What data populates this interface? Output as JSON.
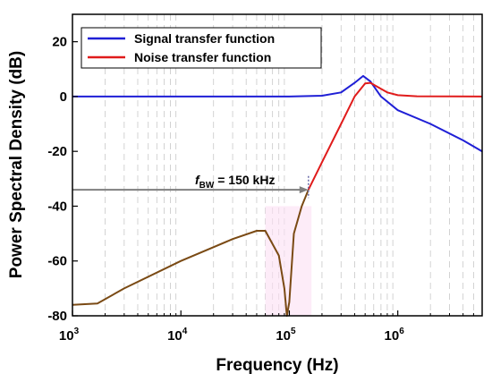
{
  "chart_data": {
    "type": "line",
    "xlabel": "Frequency (Hz)",
    "ylabel": "Power Spectral Density (dB)",
    "x_scale": "log",
    "xlim": [
      1000,
      6000000
    ],
    "ylim": [
      -80,
      30
    ],
    "x_ticks": [
      {
        "base": "10",
        "exp": "3"
      },
      {
        "base": "10",
        "exp": "4"
      },
      {
        "base": "10",
        "exp": "5"
      },
      {
        "base": "10",
        "exp": "6"
      }
    ],
    "y_ticks": [
      "20",
      "0",
      "-20",
      "-40",
      "-60",
      "-80"
    ],
    "grid": "dashed minor vertical",
    "legend_position": "top-left",
    "series": [
      {
        "name": "Signal transfer function",
        "color": "#1f1fd6",
        "points": [
          [
            1000,
            0
          ],
          [
            100000,
            0
          ],
          [
            200000,
            0.3
          ],
          [
            300000,
            1.5
          ],
          [
            400000,
            5
          ],
          [
            480000,
            7.5
          ],
          [
            560000,
            5.5
          ],
          [
            700000,
            0
          ],
          [
            1000000,
            -5
          ],
          [
            2000000,
            -10
          ],
          [
            4000000,
            -16
          ],
          [
            6000000,
            -20
          ]
        ]
      },
      {
        "name": "Noise transfer function",
        "color": "#e01b1b",
        "points": [
          [
            150000,
            -34
          ],
          [
            200000,
            -24
          ],
          [
            300000,
            -10
          ],
          [
            400000,
            0
          ],
          [
            500000,
            4.8
          ],
          [
            560000,
            5
          ],
          [
            800000,
            1.5
          ],
          [
            1000000,
            0.5
          ],
          [
            1500000,
            0.1
          ],
          [
            6000000,
            0
          ]
        ]
      },
      {
        "name": "",
        "color": "#7a4a14",
        "points": [
          [
            1000,
            -76
          ],
          [
            1700,
            -75.5
          ],
          [
            3000,
            -70
          ],
          [
            10000,
            -60
          ],
          [
            30000,
            -52
          ],
          [
            50000,
            -49
          ],
          [
            60000,
            -49
          ],
          [
            80000,
            -58
          ],
          [
            90000,
            -70
          ],
          [
            95000,
            -80
          ],
          [
            100000,
            -75
          ],
          [
            110000,
            -50
          ],
          [
            130000,
            -40
          ],
          [
            150000,
            -34
          ]
        ]
      }
    ],
    "annotation": {
      "label_main": "f",
      "label_sub": "BW",
      "label_rest": " = 150 kHz",
      "arrow_from": [
        1000,
        -34
      ],
      "arrow_to": [
        150000,
        -34
      ],
      "arrow_color": "#7f7f7f"
    }
  }
}
